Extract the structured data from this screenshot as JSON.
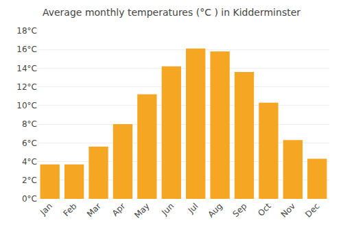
{
  "chart_data": {
    "type": "bar",
    "title": "Average monthly temperatures (°C ) in Kidderminster",
    "categories": [
      "Jan",
      "Feb",
      "Mar",
      "Apr",
      "May",
      "Jun",
      "Jul",
      "Aug",
      "Sep",
      "Oct",
      "Nov",
      "Dec"
    ],
    "values": [
      3.7,
      3.7,
      5.6,
      8.0,
      11.2,
      14.2,
      16.1,
      15.8,
      13.6,
      10.3,
      6.3,
      4.3
    ],
    "color": "#F5A623",
    "ylim": [
      0,
      18
    ],
    "yticks": [
      {
        "value": 0,
        "label": "0°C"
      },
      {
        "value": 2,
        "label": "2°C"
      },
      {
        "value": 4,
        "label": "4°C"
      },
      {
        "value": 6,
        "label": "6°C"
      },
      {
        "value": 8,
        "label": "8°C"
      },
      {
        "value": 10,
        "label": "10°C"
      },
      {
        "value": 12,
        "label": "12°C"
      },
      {
        "value": 14,
        "label": "14°C"
      },
      {
        "value": 16,
        "label": "16°C"
      },
      {
        "value": 18,
        "label": "18°C"
      }
    ],
    "grid": true
  }
}
